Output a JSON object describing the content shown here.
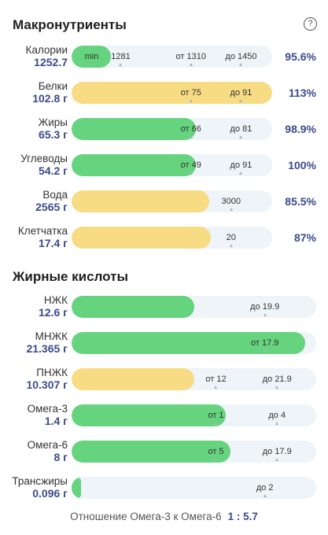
{
  "macro": {
    "title": "Макронутриенты",
    "rows": [
      {
        "label": "Калории",
        "amount": "1252.7",
        "pct": "95.6%",
        "color": "green",
        "fill": 0.196,
        "marks": [
          {
            "t": "min",
            "p": 0.1
          },
          {
            "t": "1281",
            "p": 0.245,
            "tick": true
          },
          {
            "t": "от 1310",
            "p": 0.595,
            "tick": true
          },
          {
            "t": "до 1450",
            "p": 0.845,
            "tick": true
          }
        ]
      },
      {
        "label": "Белки",
        "amount": "102.8 г",
        "pct": "113%",
        "color": "yellow",
        "fill": 1.0,
        "marks": [
          {
            "t": "от 75",
            "p": 0.595,
            "tick": true
          },
          {
            "t": "до 91",
            "p": 0.845,
            "tick": true
          }
        ]
      },
      {
        "label": "Жиры",
        "amount": "65.3 г",
        "pct": "98.9%",
        "color": "green",
        "fill": 0.62,
        "marks": [
          {
            "t": "от 66",
            "p": 0.595,
            "tick": true
          },
          {
            "t": "до 81",
            "p": 0.845,
            "tick": true
          }
        ]
      },
      {
        "label": "Углеводы",
        "amount": "54.2 г",
        "pct": "100%",
        "color": "green",
        "fill": 0.62,
        "marks": [
          {
            "t": "от 49",
            "p": 0.595,
            "tick": true
          },
          {
            "t": "до 91",
            "p": 0.845,
            "tick": true
          }
        ]
      },
      {
        "label": "Вода",
        "amount": "2565 г",
        "pct": "85.5%",
        "color": "yellow",
        "fill": 0.685,
        "marks": [
          {
            "t": "3000",
            "p": 0.795,
            "tick": true
          }
        ]
      },
      {
        "label": "Клетчатка",
        "amount": "17.4 г",
        "pct": "87%",
        "color": "yellow",
        "fill": 0.695,
        "marks": [
          {
            "t": "20",
            "p": 0.795,
            "tick": true
          }
        ]
      }
    ]
  },
  "fatty": {
    "title": "Жирные кислоты",
    "rows": [
      {
        "label": "НЖК",
        "amount": "12.6 г",
        "color": "green",
        "fill": 0.5,
        "marks": [
          {
            "t": "до 19.9",
            "p": 0.79,
            "tick": true
          }
        ]
      },
      {
        "label": "МНЖК",
        "amount": "21.365 г",
        "color": "green",
        "fill": 0.955,
        "marks": [
          {
            "t": "от 17.9",
            "p": 0.79,
            "tick": true
          }
        ]
      },
      {
        "label": "ПНЖК",
        "amount": "10.307 г",
        "color": "yellow",
        "fill": 0.5,
        "marks": [
          {
            "t": "от 12",
            "p": 0.59,
            "tick": true
          },
          {
            "t": "до 21.9",
            "p": 0.84,
            "tick": true
          }
        ]
      },
      {
        "label": "Омега-3",
        "amount": "1.4 г",
        "color": "green",
        "fill": 0.63,
        "marks": [
          {
            "t": "от 1",
            "p": 0.59,
            "tick": true
          },
          {
            "t": "до 4",
            "p": 0.84,
            "tick": true
          }
        ]
      },
      {
        "label": "Омега-6",
        "amount": "8 г",
        "color": "green",
        "fill": 0.65,
        "marks": [
          {
            "t": "от 5",
            "p": 0.59,
            "tick": true
          },
          {
            "t": "до 17.9",
            "p": 0.84,
            "tick": true
          }
        ]
      },
      {
        "label": "Трансжиры",
        "amount": "0.096 г",
        "color": "green",
        "fill": 0.04,
        "marks": [
          {
            "t": "до 2",
            "p": 0.79,
            "tick": true
          }
        ]
      }
    ]
  },
  "ratio": {
    "label": "Отношение Омега-3 к Омега-6",
    "value": "1 : 5.7"
  },
  "help_icon": "question-circle-icon"
}
